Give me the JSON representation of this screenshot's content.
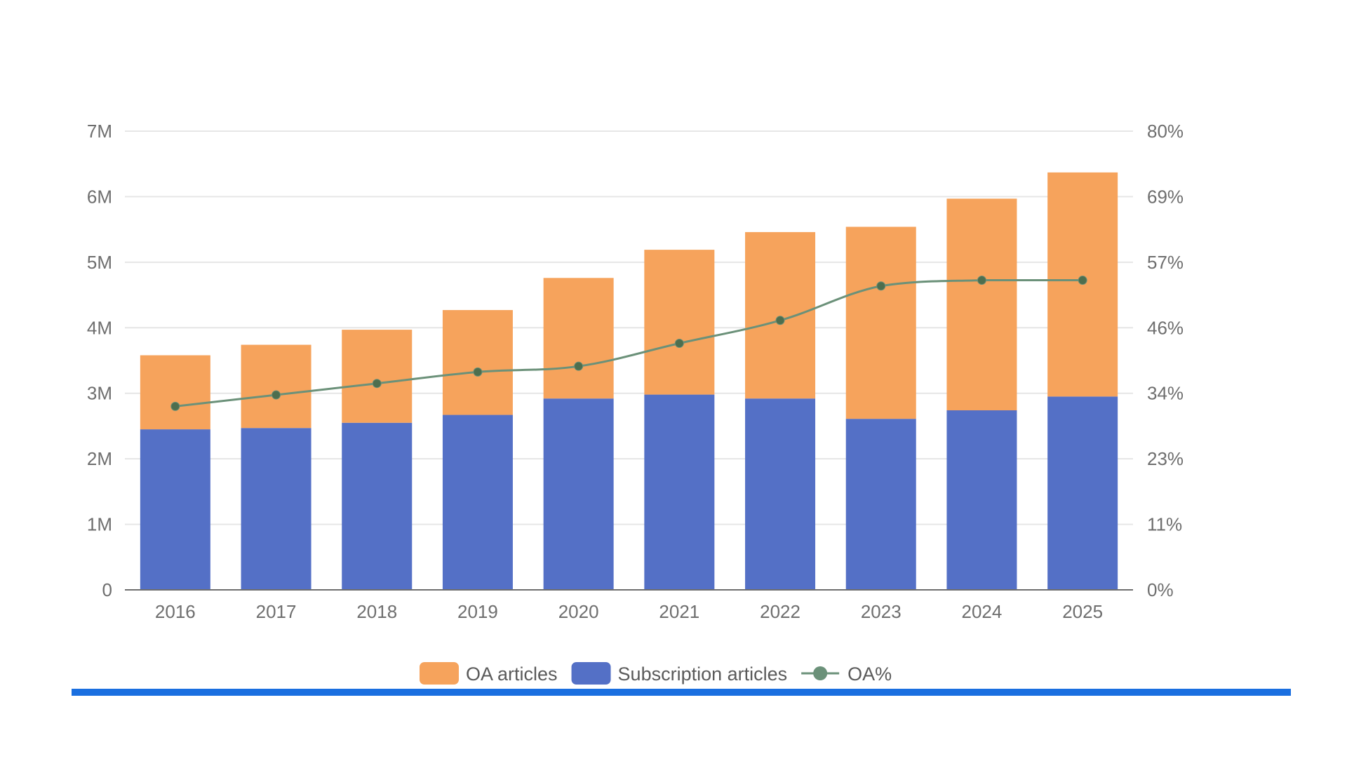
{
  "colors": {
    "oa": "#F6A35C",
    "subscription": "#5470C6",
    "line": "#6B9179",
    "grid": "#e6e6e6",
    "axis": "#6e6e6e",
    "accent_bar": "#1A6FE0"
  },
  "chart_data": {
    "type": "bar",
    "stacked": true,
    "categories": [
      "2016",
      "2017",
      "2018",
      "2019",
      "2020",
      "2021",
      "2022",
      "2023",
      "2024",
      "2025"
    ],
    "series": [
      {
        "name": "Subscription articles",
        "type": "bar",
        "axis": "left",
        "values": [
          2.45,
          2.47,
          2.55,
          2.67,
          2.92,
          2.98,
          2.92,
          2.61,
          2.74,
          2.95
        ]
      },
      {
        "name": "OA articles",
        "type": "bar",
        "axis": "left",
        "values": [
          1.13,
          1.27,
          1.42,
          1.6,
          1.84,
          2.21,
          2.54,
          2.93,
          3.23,
          3.42
        ]
      },
      {
        "name": "OA%",
        "type": "line",
        "axis": "right",
        "values": [
          32,
          34,
          36,
          38,
          39,
          43,
          47,
          53,
          54,
          54
        ]
      }
    ],
    "left_axis": {
      "min": 0,
      "max": 7,
      "unit": "M",
      "tick_labels": [
        "0",
        "1M",
        "2M",
        "3M",
        "4M",
        "5M",
        "6M",
        "7M"
      ]
    },
    "right_axis": {
      "min": 0,
      "max": 80,
      "unit": "%",
      "tick_labels": [
        "0%",
        "11%",
        "23%",
        "34%",
        "46%",
        "57%",
        "69%",
        "80%"
      ]
    },
    "legend": {
      "position": "bottom-center",
      "items": [
        {
          "key": "oa",
          "label": "OA articles"
        },
        {
          "key": "subscription",
          "label": "Subscription articles"
        },
        {
          "key": "line",
          "label": "OA%"
        }
      ]
    },
    "grid": true
  }
}
